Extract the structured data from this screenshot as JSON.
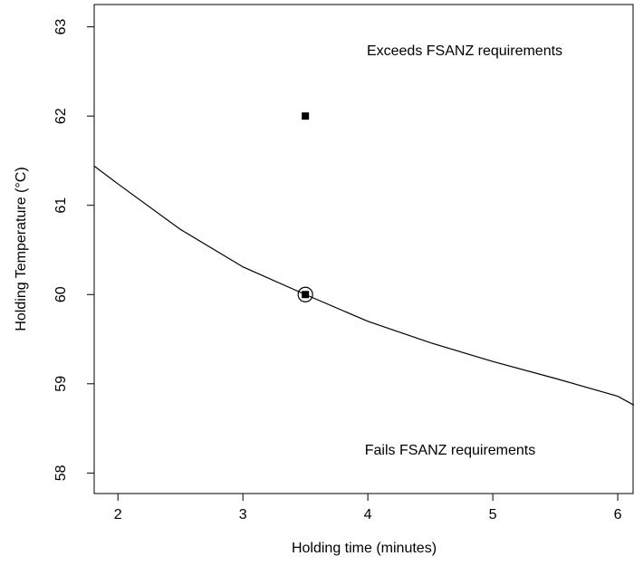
{
  "chart_data": {
    "type": "line",
    "xlabel": "Holding time (minutes)",
    "ylabel": "Holding Temperature (°C)",
    "xlim": [
      1.81,
      6.13
    ],
    "ylim": [
      57.77,
      63.25
    ],
    "xticks": [
      2,
      3,
      4,
      5,
      6
    ],
    "yticks": [
      58,
      59,
      60,
      61,
      62,
      63
    ],
    "series": [
      {
        "color": "#000000",
        "x": [
          1.81,
          2,
          2.5,
          3,
          3.5,
          4,
          4.5,
          5,
          5.5,
          6,
          6.13
        ],
        "values": [
          61.44,
          61.24,
          60.73,
          60.31,
          60.0,
          59.7,
          59.46,
          59.25,
          59.06,
          58.86,
          58.76
        ]
      }
    ],
    "points": [
      {
        "x": 3.5,
        "y": 62,
        "marker": "square",
        "color": "#000000"
      },
      {
        "x": 3.5,
        "y": 60,
        "marker": "square",
        "color": "#000000"
      },
      {
        "x": 3.5,
        "y": 60,
        "marker": "circle",
        "color": "#000000"
      }
    ],
    "annotations": [
      "Exceeds FSANZ requirements",
      "Fails FSANZ requirements"
    ]
  }
}
